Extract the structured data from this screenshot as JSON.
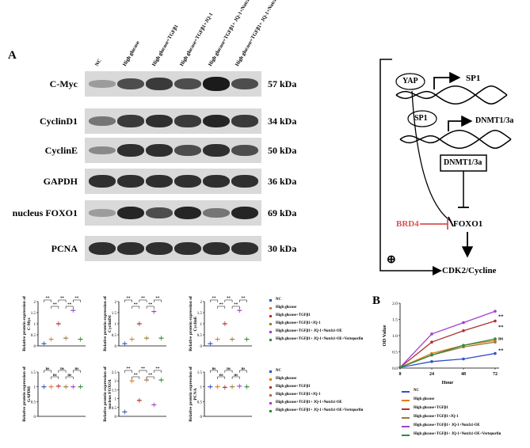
{
  "panel_a": {
    "letter": "A",
    "lanes": [
      "NC",
      "High glucose",
      "High glucose+TGFβ1",
      "High glucose+TGFβ1+JQ-1",
      "High glucose+TGFβ1+ JQ-1+Notch1-OE",
      "High glucose+TGFβ1+ JQ-1+Notch1-OE+Verteporfin"
    ],
    "blots": [
      {
        "protein": "C-Myc",
        "kda": "57 kDa"
      },
      {
        "protein": "CyclinD1",
        "kda": "34 kDa"
      },
      {
        "protein": "CyclinE",
        "kda": "50 kDa"
      },
      {
        "protein": "GAPDH",
        "kda": "36 kDa"
      },
      {
        "protein": "nucleus FOXO1",
        "kda": "69 kDa"
      },
      {
        "protein": "PCNA",
        "kda": "30 kDa"
      }
    ]
  },
  "panel_b": {
    "letter": "B"
  },
  "diagram": {
    "yap": "YAP",
    "sp1_target": "SP1",
    "sp1": "SP1",
    "dnmt_target": "DNMT1/3a",
    "dnmt_box": "DNMT1/3a",
    "brd4": "BRD4",
    "foxo1": "FOXO1",
    "cdk2": "CDK2/Cycline",
    "plus": "⊕",
    "brd4_color": "#d9534f"
  },
  "legend_a": [
    "NC",
    "High glucose",
    "High glucose+TGFβ1",
    "High glucose+TGFβ1+JQ-1",
    "High glucose+TGFβ1+ JQ-1+Notch1-OE",
    "High glucose+TGFβ1+ JQ-1+Notch1-OE+Verteporfin"
  ],
  "legend_b": [
    "NC",
    "High glucose",
    "High glucose+TGFβ1",
    "High glucose+TGFβ1+JQ-1",
    "High glucose+TGFβ1+ JQ-1+Notch1-OE",
    "High glucose+TGFβ1+ JQ-1+Notch1-OE+Verteporfin"
  ],
  "colors": [
    "#3050c8",
    "#e07a20",
    "#b03030",
    "#9a7a3a",
    "#a040d0",
    "#2e8b3e"
  ],
  "chart_data": [
    {
      "type": "scatter",
      "ylabel": "Relative protein expression of C-Myc",
      "ylim": [
        0,
        2
      ],
      "yticks": [
        0,
        0.5,
        1,
        1.5,
        2
      ],
      "values": [
        0.1,
        0.3,
        1.0,
        0.35,
        1.6,
        0.3
      ],
      "sig": [
        "**",
        "**",
        "**",
        "**",
        "**"
      ]
    },
    {
      "type": "scatter",
      "ylabel": "Relative protein expression of CyclinD1",
      "ylim": [
        0,
        2
      ],
      "yticks": [
        0,
        0.5,
        1,
        1.5,
        2
      ],
      "values": [
        0.1,
        0.3,
        1.0,
        0.35,
        1.55,
        0.35
      ],
      "sig": [
        "**",
        "**",
        "**",
        "**",
        "**"
      ]
    },
    {
      "type": "scatter",
      "ylabel": "Relative protein expression of CyclinE",
      "ylim": [
        0,
        2
      ],
      "yticks": [
        0,
        0.5,
        1,
        1.5,
        2
      ],
      "values": [
        0.1,
        0.3,
        1.0,
        0.3,
        1.6,
        0.3
      ],
      "sig": [
        "**",
        "**",
        "**",
        "**",
        "**"
      ]
    },
    {
      "type": "scatter",
      "ylabel": "Relative protein expression of GAPDH",
      "ylim": [
        0,
        1.5
      ],
      "yticks": [
        0,
        0.5,
        1,
        1.5
      ],
      "values": [
        1.0,
        1.0,
        1.02,
        1.0,
        1.0,
        1.0
      ],
      "sig": [
        "ns",
        "ns",
        "ns",
        "ns",
        "ns"
      ]
    },
    {
      "type": "scatter",
      "ylabel": "Relative protein expression of nucleus FOXO1",
      "ylim": [
        0,
        2.5
      ],
      "yticks": [
        0,
        0.5,
        1,
        1.5,
        2,
        2.5
      ],
      "values": [
        0.25,
        2.0,
        0.9,
        2.05,
        0.65,
        2.05
      ],
      "sig": [
        "**",
        "**",
        "**",
        "**",
        "**"
      ]
    },
    {
      "type": "scatter",
      "ylabel": "Relative protein expression of PCNA",
      "ylim": [
        0,
        1.5
      ],
      "yticks": [
        0,
        0.5,
        1,
        1.5
      ],
      "values": [
        1.0,
        1.0,
        0.98,
        1.0,
        1.02,
        1.0
      ],
      "sig": [
        "ns",
        "ns",
        "ns",
        "ns",
        "ns"
      ]
    },
    {
      "type": "line",
      "xlabel": "Hour",
      "ylabel": "OD Value",
      "x": [
        0,
        24,
        48,
        72
      ],
      "ylim": [
        0,
        2
      ],
      "yticks": [
        "0.0",
        "0.5",
        "1.0",
        "1.5",
        "2.0"
      ],
      "xticks": [
        "0",
        "24",
        "48",
        "72"
      ],
      "series": [
        {
          "values": [
            0.02,
            0.2,
            0.28,
            0.45
          ]
        },
        {
          "values": [
            0.02,
            0.45,
            0.7,
            0.85
          ]
        },
        {
          "values": [
            0.02,
            0.8,
            1.15,
            1.45
          ]
        },
        {
          "values": [
            0.02,
            0.4,
            0.65,
            0.8
          ]
        },
        {
          "values": [
            0.02,
            1.05,
            1.4,
            1.75
          ]
        },
        {
          "values": [
            0.02,
            0.4,
            0.7,
            0.9
          ]
        }
      ],
      "annotations": [
        "**",
        "**",
        "ns",
        "**"
      ]
    }
  ]
}
